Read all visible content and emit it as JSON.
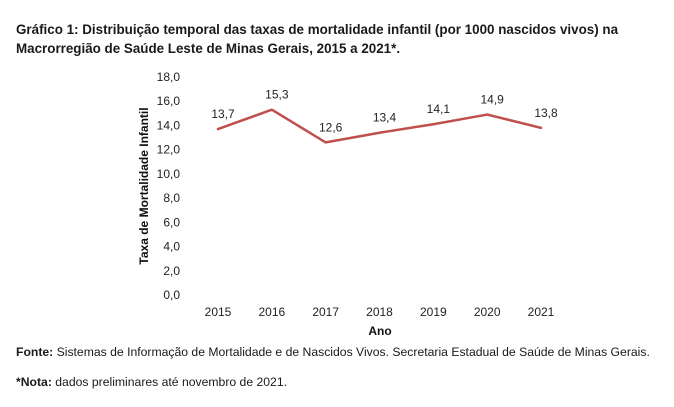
{
  "chart_data": {
    "type": "line",
    "title": "Gráfico 1: Distribuição temporal das taxas de mortalidade infantil (por 1000 nascidos vivos) na Macrorregião de Saúde Leste de Minas Gerais, 2015 a 2021*.",
    "xlabel": "Ano",
    "ylabel": "Taxa de Mortalidade  Infantil",
    "categories": [
      "2015",
      "2016",
      "2017",
      "2018",
      "2019",
      "2020",
      "2021"
    ],
    "series": [
      {
        "name": "Taxa de mortalidade infantil",
        "values": [
          13.7,
          15.3,
          12.6,
          13.4,
          14.1,
          14.9,
          13.8
        ],
        "labels": [
          "13,7",
          "15,3",
          "12,6",
          "13,4",
          "14,1",
          "14,9",
          "13,8"
        ],
        "color": "#c0504d"
      }
    ],
    "ylim": [
      0,
      18
    ],
    "yticks": [
      "0,0",
      "2,0",
      "4,0",
      "6,0",
      "8,0",
      "10,0",
      "12,0",
      "14,0",
      "16,0",
      "18,0"
    ],
    "grid": false,
    "legend": "none"
  },
  "footer": {
    "source_label": "Fonte:",
    "source_text": " Sistemas de Informação de Mortalidade e de Nascidos Vivos. Secretaria Estadual de Saúde de Minas Gerais.",
    "note_label": "*Nota:",
    "note_text": " dados preliminares até novembro de 2021."
  }
}
